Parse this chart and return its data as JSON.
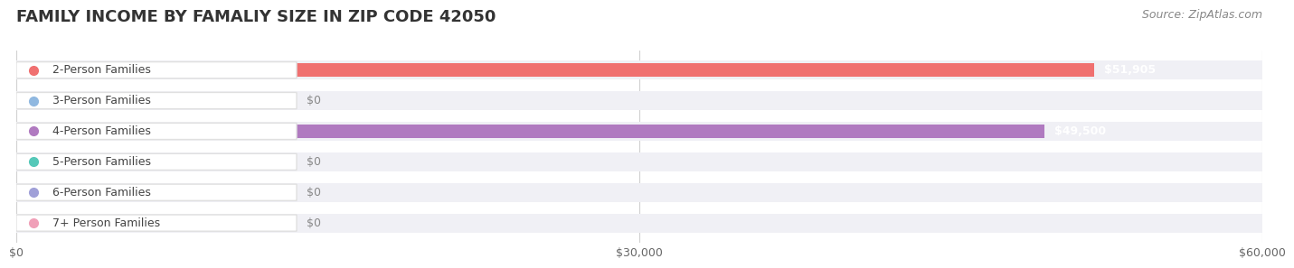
{
  "title": "FAMILY INCOME BY FAMALIY SIZE IN ZIP CODE 42050",
  "source": "Source: ZipAtlas.com",
  "categories": [
    "2-Person Families",
    "3-Person Families",
    "4-Person Families",
    "5-Person Families",
    "6-Person Families",
    "7+ Person Families"
  ],
  "values": [
    51905,
    0,
    49500,
    0,
    0,
    0
  ],
  "bar_colors": [
    "#f07070",
    "#90b8e0",
    "#b07ac0",
    "#55c8b8",
    "#a0a0d8",
    "#f0a0b8"
  ],
  "label_colors": [
    "#f07070",
    "#90b8e0",
    "#b07ac0",
    "#55c8b8",
    "#a0a0d8",
    "#f0a0b8"
  ],
  "value_labels": [
    "$51,905",
    "$0",
    "$49,500",
    "$0",
    "$0",
    "$0"
  ],
  "xlim": [
    0,
    60000
  ],
  "xticks": [
    0,
    30000,
    60000
  ],
  "xticklabels": [
    "$0",
    "$30,000",
    "$60,000"
  ],
  "background_color": "#ffffff",
  "bar_bg_color": "#f0f0f5",
  "title_fontsize": 13,
  "source_fontsize": 9,
  "label_fontsize": 9,
  "value_fontsize": 9,
  "tick_fontsize": 9
}
